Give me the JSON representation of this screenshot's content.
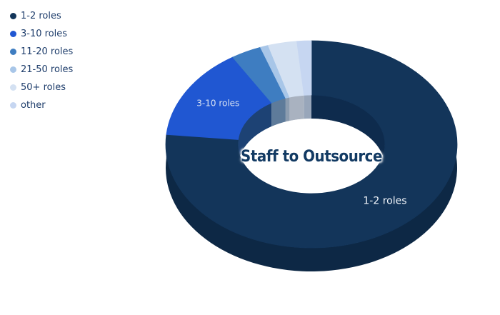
{
  "chart_data": {
    "type": "pie",
    "variant": "3d-donut",
    "title": "Staff to Outsource",
    "title_color": "#123a63",
    "direction": "clockwise",
    "start_angle_deg": 0,
    "legend_position": "top-left",
    "legend_text_color": "#1e3d6b",
    "hole_fill": "#ffffff",
    "categories": [
      "1-2 roles",
      "3-10 roles",
      "11-20 roles",
      "21-50 roles",
      "50+ roles",
      "other"
    ],
    "values_pct_estimated": [
      76.5,
      14.4,
      3.4,
      0.9,
      3.2,
      1.6
    ],
    "slice_labels_shown": [
      "1-2 roles",
      "3-10 roles"
    ],
    "slices": [
      {
        "label": "1-2 roles",
        "pct": 76.5,
        "color": "#13355a",
        "rim": "#0d2845",
        "wall": "#0e2b4d",
        "slice_label": {
          "text": "1-2 roles",
          "color": "#f2f6fb"
        }
      },
      {
        "label": "3-10 roles",
        "pct": 14.4,
        "color": "#2057d2",
        "rim": "#173a6e",
        "wall": "#1d4274",
        "slice_label": {
          "text": "3-10 roles",
          "color": "#d9e3f3"
        }
      },
      {
        "label": "11-20 roles",
        "pct": 3.4,
        "color": "#3e7dc1",
        "rim": "#2e5a84",
        "wall": "#5e7b9a"
      },
      {
        "label": "21-50 roles",
        "pct": 0.9,
        "color": "#a8c6e8",
        "rim": "#7e93a9",
        "wall": "#8c9caf"
      },
      {
        "label": "50+ roles",
        "pct": 3.2,
        "color": "#d4e1f2",
        "rim": "#9aa5b3",
        "wall": "#a9b2c0"
      },
      {
        "label": "other",
        "pct": 1.6,
        "color": "#c6d6f1",
        "rim": "#93a0b2",
        "wall": "#98a6ba"
      }
    ]
  }
}
